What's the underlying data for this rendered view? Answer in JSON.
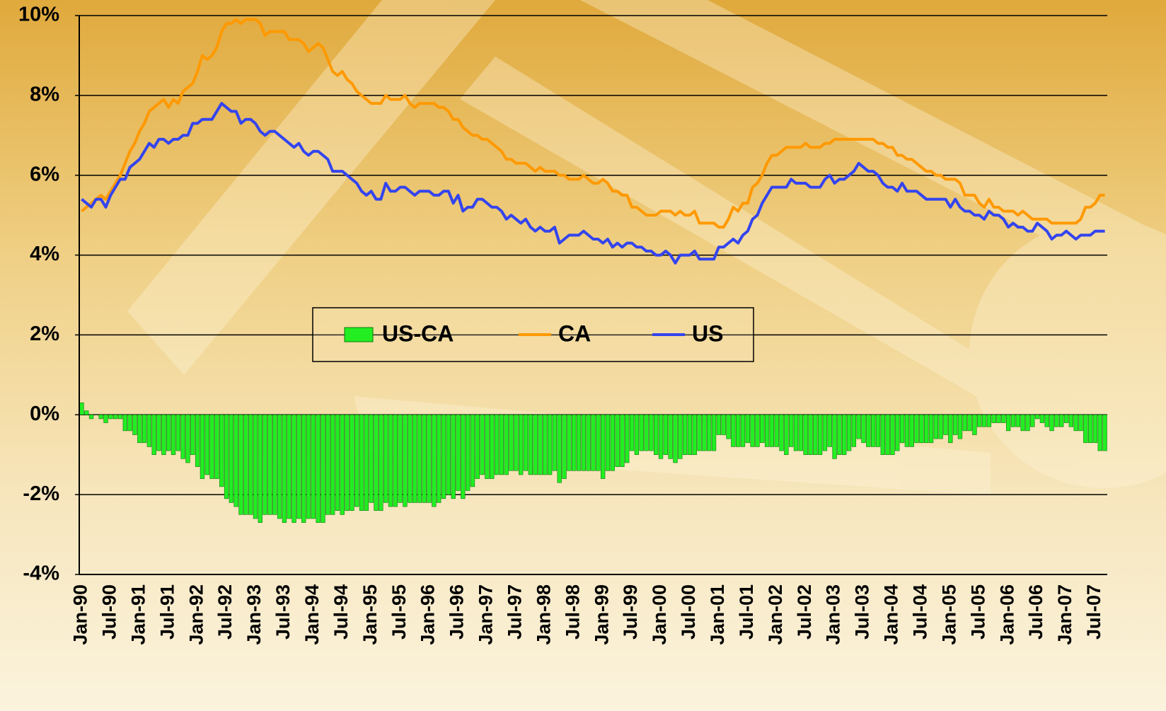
{
  "chart_data": {
    "type": "combo",
    "categories": [
      "Jan-90",
      null,
      null,
      null,
      null,
      null,
      "Jul-90",
      null,
      null,
      null,
      null,
      null,
      "Jan-91",
      null,
      null,
      null,
      null,
      null,
      "Jul-91",
      null,
      null,
      null,
      null,
      null,
      "Jan-92",
      null,
      null,
      null,
      null,
      null,
      "Jul-92",
      null,
      null,
      null,
      null,
      null,
      "Jan-93",
      null,
      null,
      null,
      null,
      null,
      "Jul-93",
      null,
      null,
      null,
      null,
      null,
      "Jan-94",
      null,
      null,
      null,
      null,
      null,
      "Jul-94",
      null,
      null,
      null,
      null,
      null,
      "Jan-95",
      null,
      null,
      null,
      null,
      null,
      "Jul-95",
      null,
      null,
      null,
      null,
      null,
      "Jan-96",
      null,
      null,
      null,
      null,
      null,
      "Jul-96",
      null,
      null,
      null,
      null,
      null,
      "Jan-97",
      null,
      null,
      null,
      null,
      null,
      "Jul-97",
      null,
      null,
      null,
      null,
      null,
      "Jan-98",
      null,
      null,
      null,
      null,
      null,
      "Jul-98",
      null,
      null,
      null,
      null,
      null,
      "Jan-99",
      null,
      null,
      null,
      null,
      null,
      "Jul-99",
      null,
      null,
      null,
      null,
      null,
      "Jan-00",
      null,
      null,
      null,
      null,
      null,
      "Jul-00",
      null,
      null,
      null,
      null,
      null,
      "Jan-01",
      null,
      null,
      null,
      null,
      null,
      "Jul-01",
      null,
      null,
      null,
      null,
      null,
      "Jan-02",
      null,
      null,
      null,
      null,
      null,
      "Jul-02",
      null,
      null,
      null,
      null,
      null,
      "Jan-03",
      null,
      null,
      null,
      null,
      null,
      "Jul-03",
      null,
      null,
      null,
      null,
      null,
      "Jan-04",
      null,
      null,
      null,
      null,
      null,
      "Jul-04",
      null,
      null,
      null,
      null,
      null,
      "Jan-05",
      null,
      null,
      null,
      null,
      null,
      "Jul-05",
      null,
      null,
      null,
      null,
      null,
      "Jan-06",
      null,
      null,
      null,
      null,
      null,
      "Jul-06",
      null,
      null,
      null,
      null,
      null,
      "Jan-07",
      null,
      null,
      null,
      null,
      null,
      "Jul-07",
      null,
      null
    ],
    "series": [
      {
        "name": "US-CA",
        "type": "bar",
        "color": "#22ee22",
        "values": [
          0.3,
          0.1,
          -0.1,
          0,
          -0.1,
          -0.2,
          -0.1,
          -0.1,
          -0.1,
          -0.4,
          -0.4,
          -0.5,
          -0.7,
          -0.7,
          -0.8,
          -1.0,
          -0.9,
          -1.0,
          -0.9,
          -1.0,
          -0.9,
          -1.1,
          -1.2,
          -1.0,
          -1.3,
          -1.6,
          -1.5,
          -1.6,
          -1.6,
          -1.8,
          -2.1,
          -2.2,
          -2.3,
          -2.5,
          -2.5,
          -2.5,
          -2.6,
          -2.7,
          -2.5,
          -2.5,
          -2.5,
          -2.6,
          -2.7,
          -2.6,
          -2.7,
          -2.6,
          -2.7,
          -2.6,
          -2.6,
          -2.7,
          -2.7,
          -2.5,
          -2.5,
          -2.4,
          -2.5,
          -2.4,
          -2.4,
          -2.3,
          -2.4,
          -2.4,
          -2.2,
          -2.4,
          -2.4,
          -2.2,
          -2.3,
          -2.3,
          -2.2,
          -2.3,
          -2.2,
          -2.2,
          -2.2,
          -2.2,
          -2.2,
          -2.3,
          -2.2,
          -2.1,
          -2.0,
          -2.1,
          -1.9,
          -2.1,
          -1.9,
          -1.8,
          -1.6,
          -1.5,
          -1.6,
          -1.6,
          -1.5,
          -1.5,
          -1.5,
          -1.4,
          -1.4,
          -1.5,
          -1.4,
          -1.5,
          -1.5,
          -1.5,
          -1.5,
          -1.5,
          -1.4,
          -1.7,
          -1.6,
          -1.4,
          -1.4,
          -1.4,
          -1.4,
          -1.4,
          -1.4,
          -1.4,
          -1.6,
          -1.4,
          -1.4,
          -1.3,
          -1.3,
          -1.2,
          -0.9,
          -1.0,
          -0.9,
          -0.9,
          -0.9,
          -1.0,
          -1.1,
          -1.0,
          -1.1,
          -1.2,
          -1.1,
          -1.0,
          -1.0,
          -1.0,
          -0.9,
          -0.9,
          -0.9,
          -0.9,
          -0.5,
          -0.5,
          -0.6,
          -0.8,
          -0.8,
          -0.8,
          -0.7,
          -0.8,
          -0.8,
          -0.7,
          -0.8,
          -0.8,
          -0.8,
          -0.9,
          -1.0,
          -0.8,
          -0.9,
          -0.9,
          -1.0,
          -1.0,
          -1.0,
          -1.0,
          -0.9,
          -0.8,
          -1.1,
          -1.0,
          -1.0,
          -0.9,
          -0.8,
          -0.6,
          -0.7,
          -0.8,
          -0.8,
          -0.8,
          -1.0,
          -1.0,
          -1.0,
          -0.9,
          -0.7,
          -0.8,
          -0.8,
          -0.7,
          -0.7,
          -0.7,
          -0.7,
          -0.6,
          -0.6,
          -0.5,
          -0.7,
          -0.5,
          -0.6,
          -0.4,
          -0.4,
          -0.5,
          -0.3,
          -0.3,
          -0.3,
          -0.2,
          -0.2,
          -0.2,
          -0.4,
          -0.3,
          -0.3,
          -0.4,
          -0.4,
          -0.3,
          -0.1,
          -0.2,
          -0.3,
          -0.4,
          -0.3,
          -0.3,
          -0.2,
          -0.3,
          -0.4,
          -0.4,
          -0.7,
          -0.7,
          -0.7,
          -0.9,
          -0.9
        ]
      },
      {
        "name": "CA",
        "type": "line",
        "color": "#ff9900",
        "values": [
          5.1,
          5.2,
          5.3,
          5.4,
          5.5,
          5.4,
          5.6,
          5.8,
          6.0,
          6.3,
          6.6,
          6.8,
          7.1,
          7.3,
          7.6,
          7.7,
          7.8,
          7.9,
          7.7,
          7.9,
          7.8,
          8.1,
          8.2,
          8.3,
          8.6,
          9.0,
          8.9,
          9.0,
          9.2,
          9.6,
          9.8,
          9.8,
          9.9,
          9.8,
          9.9,
          9.9,
          9.9,
          9.8,
          9.5,
          9.6,
          9.6,
          9.6,
          9.6,
          9.4,
          9.4,
          9.4,
          9.3,
          9.1,
          9.2,
          9.3,
          9.2,
          8.9,
          8.6,
          8.5,
          8.6,
          8.4,
          8.3,
          8.1,
          8.0,
          7.9,
          7.8,
          7.8,
          7.8,
          8.0,
          7.9,
          7.9,
          7.9,
          8.0,
          7.8,
          7.7,
          7.8,
          7.8,
          7.8,
          7.8,
          7.7,
          7.7,
          7.6,
          7.4,
          7.4,
          7.2,
          7.1,
          7.0,
          7.0,
          6.9,
          6.9,
          6.8,
          6.7,
          6.6,
          6.4,
          6.4,
          6.3,
          6.3,
          6.3,
          6.2,
          6.1,
          6.2,
          6.1,
          6.1,
          6.1,
          6.0,
          6.0,
          5.9,
          5.9,
          5.9,
          6.0,
          5.9,
          5.8,
          5.8,
          5.9,
          5.8,
          5.6,
          5.6,
          5.5,
          5.5,
          5.2,
          5.2,
          5.1,
          5.0,
          5.0,
          5.0,
          5.1,
          5.1,
          5.1,
          5.0,
          5.1,
          5.0,
          5.0,
          5.1,
          4.8,
          4.8,
          4.8,
          4.8,
          4.7,
          4.7,
          4.9,
          5.2,
          5.1,
          5.3,
          5.3,
          5.7,
          5.8,
          6.0,
          6.3,
          6.5,
          6.5,
          6.6,
          6.7,
          6.7,
          6.7,
          6.7,
          6.8,
          6.7,
          6.7,
          6.7,
          6.8,
          6.8,
          6.9,
          6.9,
          6.9,
          6.9,
          6.9,
          6.9,
          6.9,
          6.9,
          6.9,
          6.8,
          6.8,
          6.7,
          6.7,
          6.5,
          6.5,
          6.4,
          6.4,
          6.3,
          6.2,
          6.1,
          6.1,
          6.0,
          6.0,
          5.9,
          5.9,
          5.9,
          5.8,
          5.5,
          5.5,
          5.5,
          5.3,
          5.2,
          5.4,
          5.2,
          5.2,
          5.1,
          5.1,
          5.1,
          5.0,
          5.1,
          5.0,
          4.9,
          4.9,
          4.9,
          4.9,
          4.8,
          4.8,
          4.8,
          4.8,
          4.8,
          4.8,
          4.9,
          5.2,
          5.2,
          5.3,
          5.5,
          5.5
        ]
      },
      {
        "name": "US",
        "type": "line",
        "color": "#3344ee",
        "values": [
          5.4,
          5.3,
          5.2,
          5.4,
          5.4,
          5.2,
          5.5,
          5.7,
          5.9,
          5.9,
          6.2,
          6.3,
          6.4,
          6.6,
          6.8,
          6.7,
          6.9,
          6.9,
          6.8,
          6.9,
          6.9,
          7.0,
          7.0,
          7.3,
          7.3,
          7.4,
          7.4,
          7.4,
          7.6,
          7.8,
          7.7,
          7.6,
          7.6,
          7.3,
          7.4,
          7.4,
          7.3,
          7.1,
          7.0,
          7.1,
          7.1,
          7.0,
          6.9,
          6.8,
          6.7,
          6.8,
          6.6,
          6.5,
          6.6,
          6.6,
          6.5,
          6.4,
          6.1,
          6.1,
          6.1,
          6.0,
          5.9,
          5.8,
          5.6,
          5.5,
          5.6,
          5.4,
          5.4,
          5.8,
          5.6,
          5.6,
          5.7,
          5.7,
          5.6,
          5.5,
          5.6,
          5.6,
          5.6,
          5.5,
          5.5,
          5.6,
          5.6,
          5.3,
          5.5,
          5.1,
          5.2,
          5.2,
          5.4,
          5.4,
          5.3,
          5.2,
          5.2,
          5.1,
          4.9,
          5.0,
          4.9,
          4.8,
          4.9,
          4.7,
          4.6,
          4.7,
          4.6,
          4.6,
          4.7,
          4.3,
          4.4,
          4.5,
          4.5,
          4.5,
          4.6,
          4.5,
          4.4,
          4.4,
          4.3,
          4.4,
          4.2,
          4.3,
          4.2,
          4.3,
          4.3,
          4.2,
          4.2,
          4.1,
          4.1,
          4.0,
          4.0,
          4.1,
          4.0,
          3.8,
          4.0,
          4.0,
          4.0,
          4.1,
          3.9,
          3.9,
          3.9,
          3.9,
          4.2,
          4.2,
          4.3,
          4.4,
          4.3,
          4.5,
          4.6,
          4.9,
          5.0,
          5.3,
          5.5,
          5.7,
          5.7,
          5.7,
          5.7,
          5.9,
          5.8,
          5.8,
          5.8,
          5.7,
          5.7,
          5.7,
          5.9,
          6.0,
          5.8,
          5.9,
          5.9,
          6.0,
          6.1,
          6.3,
          6.2,
          6.1,
          6.1,
          6.0,
          5.8,
          5.7,
          5.7,
          5.6,
          5.8,
          5.6,
          5.6,
          5.6,
          5.5,
          5.4,
          5.4,
          5.4,
          5.4,
          5.4,
          5.2,
          5.4,
          5.2,
          5.1,
          5.1,
          5.0,
          5.0,
          4.9,
          5.1,
          5.0,
          5.0,
          4.9,
          4.7,
          4.8,
          4.7,
          4.7,
          4.6,
          4.6,
          4.8,
          4.7,
          4.6,
          4.4,
          4.5,
          4.5,
          4.6,
          4.5,
          4.4,
          4.5,
          4.5,
          4.5,
          4.6,
          4.6,
          4.6
        ]
      }
    ],
    "ylim": [
      -4,
      10
    ],
    "yticks": [
      {
        "value": -4,
        "label": "-4%"
      },
      {
        "value": -2,
        "label": "-2%"
      },
      {
        "value": 0,
        "label": "0%"
      },
      {
        "value": 2,
        "label": "2%"
      },
      {
        "value": 4,
        "label": "4%"
      },
      {
        "value": 6,
        "label": "6%"
      },
      {
        "value": 8,
        "label": "8%"
      },
      {
        "value": 10,
        "label": "10%"
      }
    ],
    "grid": true,
    "legend": "center"
  }
}
